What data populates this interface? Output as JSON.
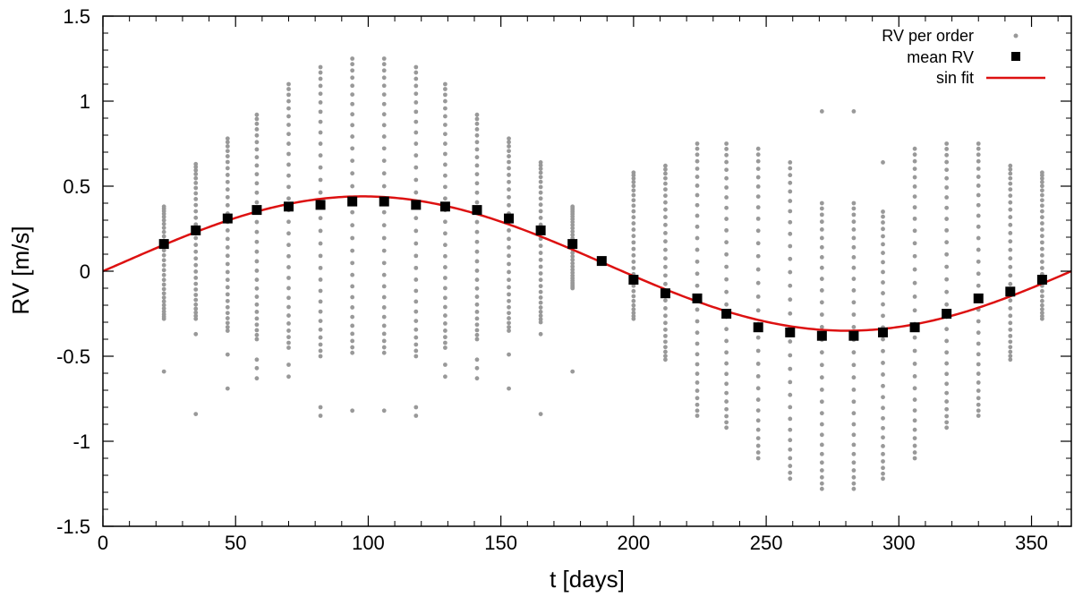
{
  "chart_data": {
    "type": "scatter",
    "xlabel": "t [days]",
    "ylabel": "RV [m/s]",
    "xlim": [
      0,
      365
    ],
    "ylim": [
      -1.5,
      1.5
    ],
    "xticks": [
      0,
      50,
      100,
      150,
      200,
      250,
      300,
      350
    ],
    "xtick_labels": [
      "0",
      "50",
      "100",
      "150",
      "200",
      "250",
      "300",
      "350"
    ],
    "yticks": [
      -1.5,
      -1,
      -0.5,
      0,
      0.5,
      1,
      1.5
    ],
    "ytick_labels": [
      "-1.5",
      "-1",
      "-0.5",
      "0",
      "0.5",
      "1",
      "1.5"
    ],
    "grid": false,
    "legend_position": "top-right",
    "legend": [
      {
        "label": "RV per order",
        "marker": "dot",
        "color": "#999999"
      },
      {
        "label": "mean RV",
        "marker": "square",
        "color": "#000000"
      },
      {
        "label": "sin fit",
        "marker": "line",
        "color": "#dd1111"
      }
    ],
    "colors": {
      "per_order": "#999999",
      "mean": "#000000",
      "fit": "#dd1111"
    },
    "series": [
      {
        "name": "mean RV",
        "x": [
          23,
          35,
          47,
          58,
          70,
          82,
          94,
          106,
          118,
          129,
          141,
          153,
          165,
          177,
          188,
          200,
          212,
          224,
          235,
          247,
          259,
          271,
          283,
          294,
          306,
          318,
          330,
          342,
          354
        ],
        "y": [
          0.16,
          0.24,
          0.31,
          0.36,
          0.38,
          0.39,
          0.41,
          0.41,
          0.39,
          0.38,
          0.36,
          0.31,
          0.24,
          0.16,
          0.06,
          -0.05,
          -0.13,
          -0.16,
          -0.25,
          -0.33,
          -0.36,
          -0.38,
          -0.38,
          -0.36,
          -0.33,
          -0.25,
          -0.16,
          -0.12,
          -0.05
        ]
      },
      {
        "name": "RV per order",
        "groups": [
          {
            "x": 23,
            "min": -0.28,
            "max": 0.38,
            "outliers": [
              -0.59
            ]
          },
          {
            "x": 35,
            "min": -0.28,
            "max": 0.63,
            "outliers": [
              -0.37,
              -0.84
            ]
          },
          {
            "x": 47,
            "min": -0.35,
            "max": 0.78,
            "outliers": [
              -0.49,
              -0.69
            ]
          },
          {
            "x": 58,
            "min": -0.4,
            "max": 0.92,
            "outliers": [
              -0.52,
              -0.57,
              -0.63
            ]
          },
          {
            "x": 70,
            "min": -0.45,
            "max": 1.1,
            "outliers": [
              -0.55,
              -0.62
            ]
          },
          {
            "x": 82,
            "min": -0.5,
            "max": 1.2,
            "outliers": [
              -0.8,
              -0.85
            ]
          },
          {
            "x": 94,
            "min": -0.48,
            "max": 1.25,
            "outliers": [
              -0.82
            ]
          },
          {
            "x": 106,
            "min": -0.48,
            "max": 1.25,
            "outliers": [
              -0.82
            ]
          },
          {
            "x": 118,
            "min": -0.5,
            "max": 1.2,
            "outliers": [
              -0.8,
              -0.85
            ]
          },
          {
            "x": 129,
            "min": -0.45,
            "max": 1.1,
            "outliers": [
              -0.55,
              -0.62
            ]
          },
          {
            "x": 141,
            "min": -0.4,
            "max": 0.92,
            "outliers": [
              -0.52,
              -0.57,
              -0.63
            ]
          },
          {
            "x": 153,
            "min": -0.35,
            "max": 0.78,
            "outliers": [
              -0.49,
              -0.69
            ]
          },
          {
            "x": 165,
            "min": -0.3,
            "max": 0.64,
            "outliers": [
              -0.37,
              -0.84
            ]
          },
          {
            "x": 177,
            "min": -0.1,
            "max": 0.38,
            "outliers": [
              -0.59
            ]
          },
          {
            "x": 188,
            "min": 0.06,
            "max": 0.06,
            "outliers": []
          },
          {
            "x": 200,
            "min": -0.28,
            "max": 0.58,
            "outliers": []
          },
          {
            "x": 212,
            "min": -0.52,
            "max": 0.62,
            "outliers": []
          },
          {
            "x": 224,
            "min": -0.85,
            "max": 0.75,
            "outliers": []
          },
          {
            "x": 235,
            "min": -0.92,
            "max": 0.75,
            "outliers": []
          },
          {
            "x": 247,
            "min": -1.1,
            "max": 0.72,
            "outliers": []
          },
          {
            "x": 259,
            "min": -1.22,
            "max": 0.64,
            "outliers": []
          },
          {
            "x": 271,
            "min": -1.28,
            "max": 0.4,
            "outliers": [
              0.94
            ]
          },
          {
            "x": 283,
            "min": -1.28,
            "max": 0.4,
            "outliers": [
              0.94
            ]
          },
          {
            "x": 294,
            "min": -1.22,
            "max": 0.35,
            "outliers": [
              0.64
            ]
          },
          {
            "x": 306,
            "min": -1.1,
            "max": 0.72,
            "outliers": []
          },
          {
            "x": 318,
            "min": -0.92,
            "max": 0.75,
            "outliers": []
          },
          {
            "x": 330,
            "min": -0.85,
            "max": 0.75,
            "outliers": []
          },
          {
            "x": 342,
            "min": -0.52,
            "max": 0.62,
            "outliers": []
          },
          {
            "x": 354,
            "min": -0.28,
            "max": 0.58,
            "outliers": []
          }
        ]
      },
      {
        "name": "sin fit",
        "function": "0.045 + 0.395*sin(2*pi*t/365 - 0.114)"
      }
    ]
  }
}
